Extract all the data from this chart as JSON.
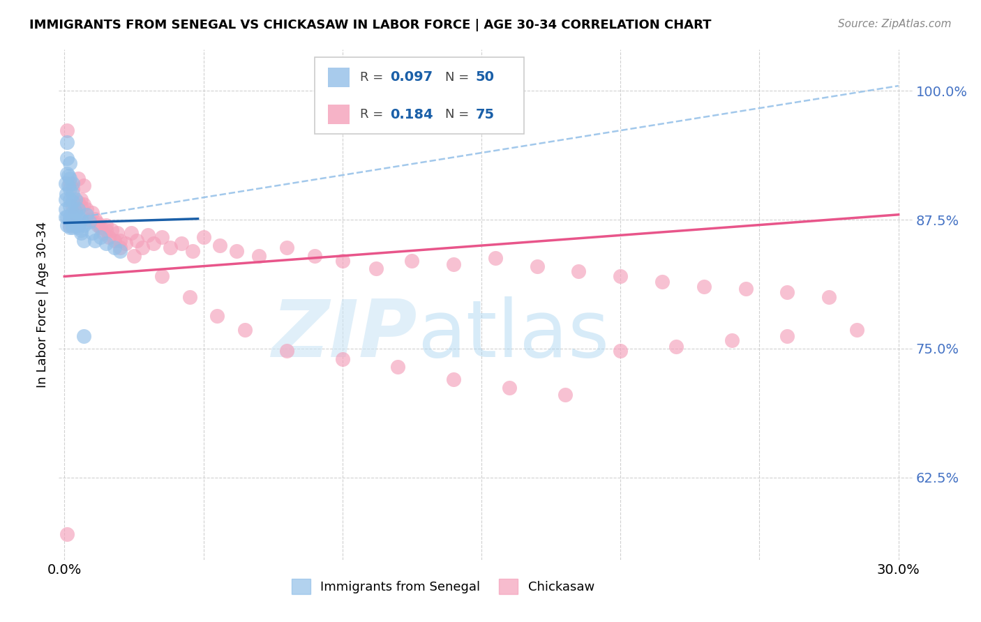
{
  "title": "IMMIGRANTS FROM SENEGAL VS CHICKASAW IN LABOR FORCE | AGE 30-34 CORRELATION CHART",
  "source": "Source: ZipAtlas.com",
  "ylabel": "In Labor Force | Age 30-34",
  "xlim": [
    -0.002,
    0.305
  ],
  "ylim": [
    0.545,
    1.04
  ],
  "yticks": [
    0.625,
    0.75,
    0.875,
    1.0
  ],
  "ytick_labels": [
    "62.5%",
    "75.0%",
    "87.5%",
    "100.0%"
  ],
  "xticks": [
    0.0,
    0.05,
    0.1,
    0.15,
    0.2,
    0.25,
    0.3
  ],
  "xtick_labels": [
    "0.0%",
    "",
    "",
    "",
    "",
    "",
    "30.0%"
  ],
  "watermark_zip": "ZIP",
  "watermark_atlas": "atlas",
  "blue_color": "#92bfe8",
  "pink_color": "#f4a0ba",
  "blue_line_color": "#1a5fa8",
  "pink_line_color": "#e8558a",
  "blue_dash_color": "#92bfe8",
  "senegal_x": [
    0.0003,
    0.0005,
    0.0007,
    0.001,
    0.001,
    0.001,
    0.0015,
    0.0015,
    0.0018,
    0.002,
    0.002,
    0.002,
    0.002,
    0.002,
    0.003,
    0.003,
    0.003,
    0.003,
    0.003,
    0.004,
    0.004,
    0.004,
    0.005,
    0.005,
    0.005,
    0.006,
    0.006,
    0.007,
    0.007,
    0.008,
    0.009,
    0.01,
    0.011,
    0.013,
    0.015,
    0.018,
    0.02,
    0.0003,
    0.0005,
    0.001,
    0.001,
    0.002,
    0.002,
    0.003,
    0.003,
    0.004,
    0.005,
    0.006,
    0.007
  ],
  "senegal_y": [
    0.895,
    0.91,
    0.9,
    0.95,
    0.935,
    0.92,
    0.918,
    0.908,
    0.895,
    0.93,
    0.915,
    0.905,
    0.888,
    0.875,
    0.91,
    0.9,
    0.893,
    0.882,
    0.87,
    0.895,
    0.883,
    0.875,
    0.885,
    0.878,
    0.87,
    0.875,
    0.862,
    0.87,
    0.855,
    0.88,
    0.873,
    0.862,
    0.855,
    0.858,
    0.852,
    0.848,
    0.845,
    0.885,
    0.878,
    0.878,
    0.87,
    0.878,
    0.868,
    0.878,
    0.868,
    0.872,
    0.868,
    0.865,
    0.762
  ],
  "chickasaw_x": [
    0.001,
    0.002,
    0.003,
    0.004,
    0.005,
    0.006,
    0.006,
    0.007,
    0.008,
    0.009,
    0.01,
    0.011,
    0.012,
    0.013,
    0.014,
    0.015,
    0.016,
    0.017,
    0.018,
    0.019,
    0.02,
    0.022,
    0.024,
    0.026,
    0.028,
    0.03,
    0.032,
    0.035,
    0.038,
    0.042,
    0.046,
    0.05,
    0.056,
    0.062,
    0.07,
    0.08,
    0.09,
    0.1,
    0.112,
    0.125,
    0.14,
    0.155,
    0.17,
    0.185,
    0.2,
    0.215,
    0.23,
    0.245,
    0.26,
    0.275,
    0.001,
    0.002,
    0.003,
    0.005,
    0.007,
    0.009,
    0.012,
    0.015,
    0.02,
    0.025,
    0.035,
    0.045,
    0.055,
    0.065,
    0.08,
    0.1,
    0.12,
    0.14,
    0.16,
    0.18,
    0.2,
    0.22,
    0.24,
    0.26,
    0.285
  ],
  "chickasaw_y": [
    0.57,
    0.87,
    0.888,
    0.882,
    0.892,
    0.895,
    0.888,
    0.89,
    0.885,
    0.875,
    0.882,
    0.876,
    0.872,
    0.868,
    0.862,
    0.87,
    0.858,
    0.865,
    0.855,
    0.862,
    0.855,
    0.852,
    0.862,
    0.855,
    0.848,
    0.86,
    0.852,
    0.858,
    0.848,
    0.852,
    0.845,
    0.858,
    0.85,
    0.845,
    0.84,
    0.848,
    0.84,
    0.835,
    0.828,
    0.835,
    0.832,
    0.838,
    0.83,
    0.825,
    0.82,
    0.815,
    0.81,
    0.808,
    0.805,
    0.8,
    0.962,
    0.91,
    0.905,
    0.915,
    0.908,
    0.875,
    0.87,
    0.865,
    0.848,
    0.84,
    0.82,
    0.8,
    0.782,
    0.768,
    0.748,
    0.74,
    0.732,
    0.72,
    0.712,
    0.705,
    0.748,
    0.752,
    0.758,
    0.762,
    0.768
  ],
  "blue_line_x0": 0.0,
  "blue_line_y0": 0.872,
  "blue_line_x1": 0.048,
  "blue_line_y1": 0.876,
  "pink_line_x0": 0.0,
  "pink_line_y0": 0.82,
  "pink_line_x1": 0.3,
  "pink_line_y1": 0.88,
  "dash_line_x0": 0.0,
  "dash_line_y0": 0.875,
  "dash_line_x1": 0.3,
  "dash_line_y1": 1.005
}
